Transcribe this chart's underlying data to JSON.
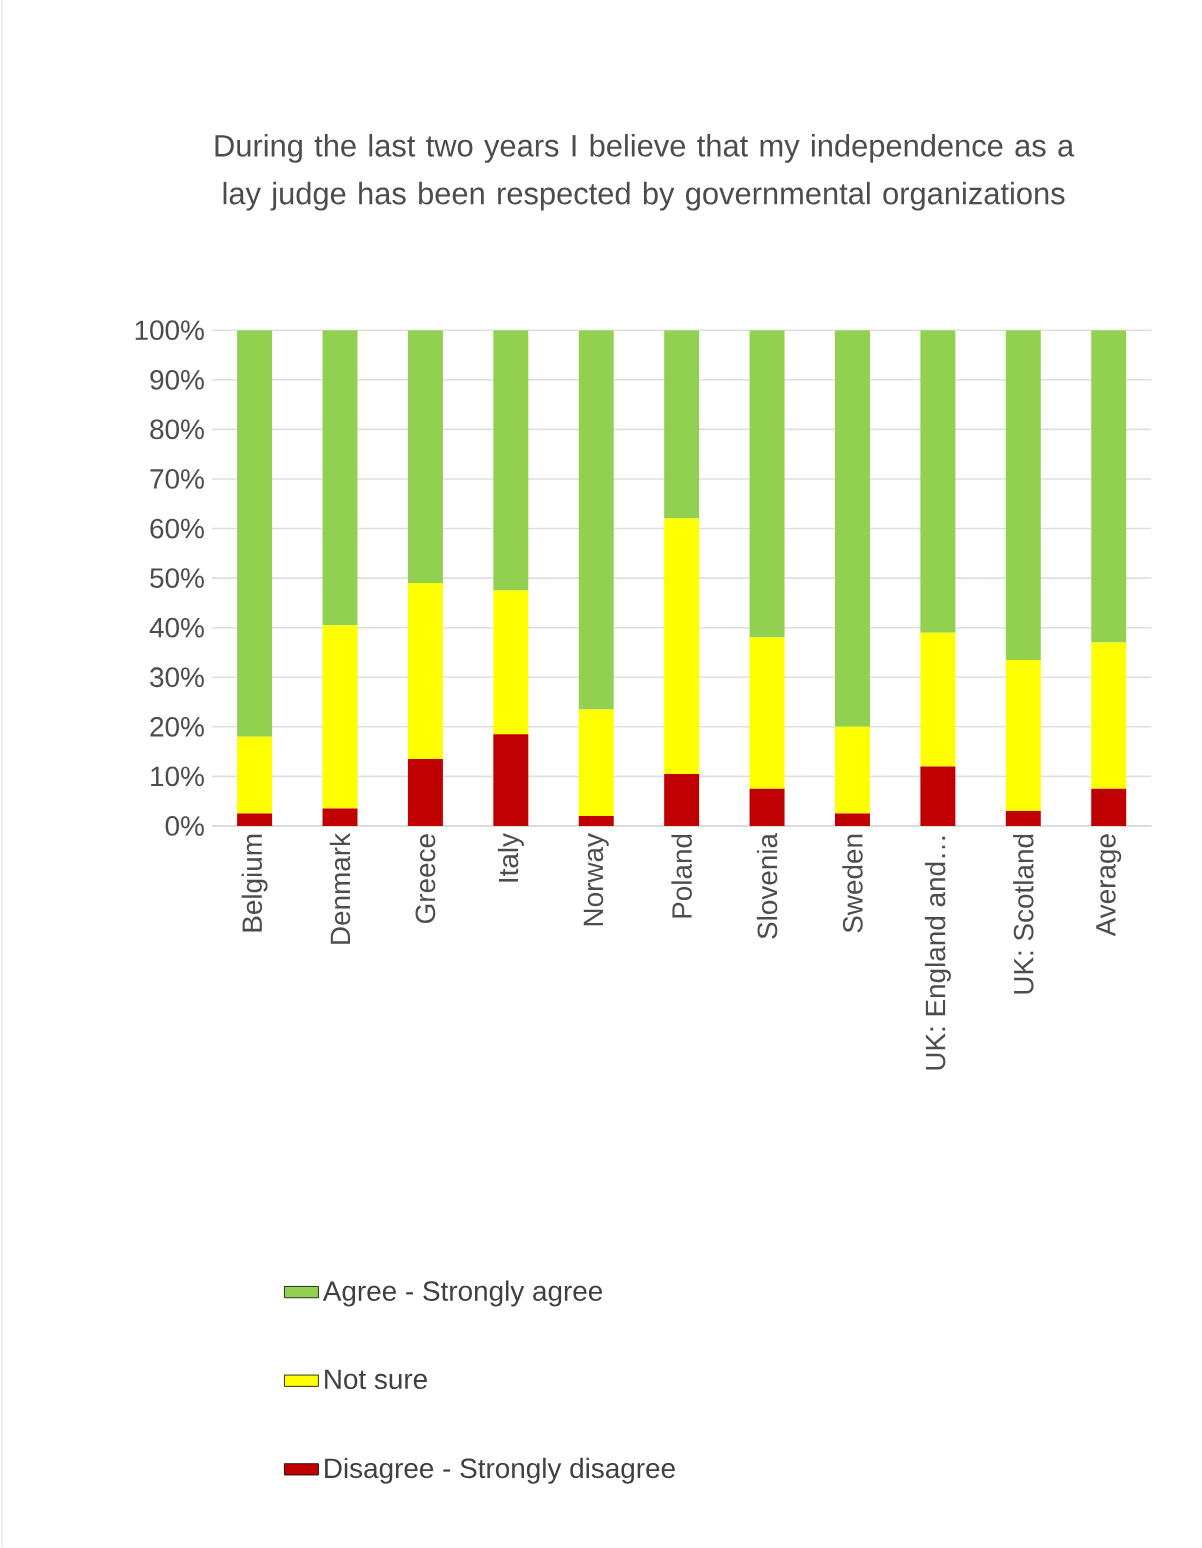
{
  "chart_data": {
    "type": "bar",
    "stacked": true,
    "title": "During the last two years I believe that my independence as a lay judge has been respected by governmental organizations",
    "categories": [
      "Belgium",
      "Denmark",
      "Greece",
      "Italy",
      "Norway",
      "Poland",
      "Slovenia",
      "Sweden",
      "UK: England and…",
      "UK: Scotland",
      "Average"
    ],
    "series": [
      {
        "name": "Disagree - Strongly disagree",
        "color": "#c00000",
        "values": [
          2.5,
          3.5,
          13.5,
          18.5,
          2,
          10.5,
          7.5,
          2.5,
          12,
          3,
          7.5
        ]
      },
      {
        "name": "Not sure",
        "color": "#ffff00",
        "values": [
          15.5,
          37,
          35.5,
          29,
          21.5,
          51.5,
          30.5,
          17.5,
          27,
          30.5,
          29.5
        ]
      },
      {
        "name": "Agree - Strongly agree",
        "color": "#92d050",
        "values": [
          82,
          59.5,
          51,
          52.5,
          76.5,
          38,
          62,
          80,
          61,
          66.5,
          63
        ]
      }
    ],
    "ylim": [
      0,
      100
    ],
    "yticks": [
      {
        "value": 0,
        "label": "0%"
      },
      {
        "value": 10,
        "label": "10%"
      },
      {
        "value": 20,
        "label": "20%"
      },
      {
        "value": 30,
        "label": "30%"
      },
      {
        "value": 40,
        "label": "40%"
      },
      {
        "value": 50,
        "label": "50%"
      },
      {
        "value": 60,
        "label": "60%"
      },
      {
        "value": 70,
        "label": "70%"
      },
      {
        "value": 80,
        "label": "80%"
      },
      {
        "value": 90,
        "label": "90%"
      },
      {
        "value": 100,
        "label": "100%"
      }
    ],
    "grid": "y",
    "legend": "bottom"
  }
}
